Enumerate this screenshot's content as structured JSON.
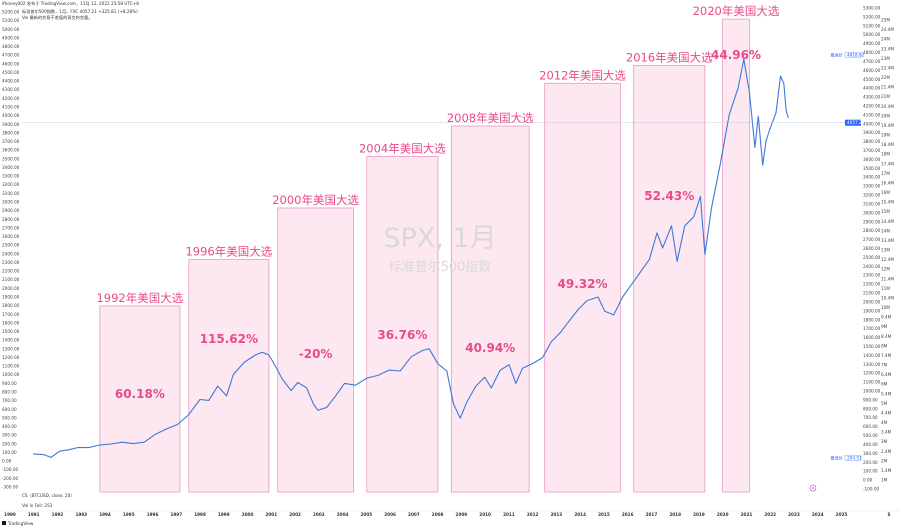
{
  "header": {
    "line1": "ifhoney002 发布于 TradingView.com，11月 12, 2022 23:58 UTC+8",
    "line2": "标准普尔500指数，1月，FXC  4057.21 +325.81 (+8.28%)",
    "line3": "Vol 最新的交易干差值的再交的交量。",
    "indicator1": "CS（BTCUSD, close, 20）",
    "indicator2": "Vol in Fall: 253",
    "footer": "TradingView"
  },
  "watermark": {
    "title": "SPX, 1月",
    "subtitle": "标准普尔500指数"
  },
  "price_badges": {
    "top_label": "最高价",
    "top_value": "4818.62",
    "current_value": "4057.21",
    "low_label": "最低价",
    "low_value": "294.51"
  },
  "colors": {
    "line": "#3d78d8",
    "box_fill": "#fde8f1",
    "box_stroke": "#e98ab7",
    "label": "#e94a8b",
    "badge": "#2962ff"
  },
  "chart_data": {
    "type": "line",
    "x_axis": [
      "1990",
      "1991",
      "1992",
      "1993",
      "1994",
      "1995",
      "1996",
      "1997",
      "1998",
      "1999",
      "2000",
      "2001",
      "2002",
      "2003",
      "2004",
      "2005",
      "2006",
      "2007",
      "2008",
      "2009",
      "2010",
      "2011",
      "2012",
      "2013",
      "2014",
      "2015",
      "2016",
      "2017",
      "2018",
      "2019",
      "2020",
      "2021",
      "2022",
      "2023",
      "2024",
      "2025",
      "",
      "S"
    ],
    "left_axis_ticks": [
      "5200.00",
      "5100.00",
      "5000.00",
      "4900.00",
      "4800.00",
      "4700.00",
      "4600.00",
      "4500.00",
      "4400.00",
      "4300.00",
      "4200.00",
      "4100.00",
      "4000.00",
      "3900.00",
      "3800.00",
      "3700.00",
      "3600.00",
      "3500.00",
      "3400.00",
      "3300.00",
      "3200.00",
      "3100.00",
      "3000.00",
      "2900.00",
      "2800.00",
      "2700.00",
      "2600.00",
      "2500.00",
      "2400.00",
      "2300.00",
      "2200.00",
      "2100.00",
      "2000.00",
      "1900.00",
      "1800.00",
      "1700.00",
      "1600.00",
      "1500.00",
      "1400.00",
      "1300.00",
      "1200.00",
      "1100.00",
      "1000.00",
      "900.00",
      "800.00",
      "700.00",
      "600.00",
      "500.00",
      "400.00",
      "300.00",
      "200.00",
      "100.00",
      "0.00",
      "-100.00",
      "-200.00",
      "-300.00"
    ],
    "right_axis_ticks": [
      "5300.00",
      "5200.00",
      "5100.00",
      "5000.00",
      "4900.00",
      "4800.00",
      "4700.00",
      "4600.00",
      "4500.00",
      "4400.00",
      "4300.00",
      "4200.00",
      "4100.00",
      "4000.00",
      "3900.00",
      "3800.00",
      "3700.00",
      "3600.00",
      "3500.00",
      "3400.00",
      "3300.00",
      "3200.00",
      "3100.00",
      "3000.00",
      "2900.00",
      "2800.00",
      "2700.00",
      "2600.00",
      "2500.00",
      "2400.00",
      "2300.00",
      "2200.00",
      "2100.00",
      "2000.00",
      "1900.00",
      "1800.00",
      "1700.00",
      "1600.00",
      "1500.00",
      "1400.00",
      "1300.00",
      "1200.00",
      "1100.00",
      "1000.00",
      "900.00",
      "800.00",
      "700.00",
      "600.00",
      "500.00",
      "400.00",
      "300.00",
      "200.00",
      "100.00",
      "0.00",
      "-100.00"
    ],
    "vol_axis_ticks": [
      "25M",
      "24.4M",
      "24M",
      "23.4M",
      "23M",
      "22.4M",
      "22M",
      "21.4M",
      "21M",
      "20.4M",
      "20M",
      "19.4M",
      "19M",
      "18.4M",
      "18M",
      "17.4M",
      "17M",
      "16.4M",
      "16M",
      "15.4M",
      "15M",
      "14.4M",
      "14M",
      "13.4M",
      "13M",
      "12.4M",
      "12M",
      "11.4M",
      "11M",
      "10.4M",
      "10M",
      "9.4M",
      "9M",
      "8.4M",
      "8M",
      "7.4M",
      "7M",
      "6.4M",
      "6M",
      "5.4M",
      "5M",
      "4.4M",
      "4M",
      "3.4M",
      "3M",
      "2.4M",
      "2M",
      "1.4M",
      "1M"
    ],
    "ylim": [
      -100,
      5300
    ],
    "series": [
      {
        "values": [
          [
            1990.0,
            340
          ],
          [
            1990.5,
            330
          ],
          [
            1990.8,
            300
          ],
          [
            1991.2,
            370
          ],
          [
            1991.6,
            385
          ],
          [
            1992.0,
            410
          ],
          [
            1992.5,
            410
          ],
          [
            1993.0,
            440
          ],
          [
            1993.5,
            450
          ],
          [
            1994.0,
            470
          ],
          [
            1994.5,
            455
          ],
          [
            1995.0,
            470
          ],
          [
            1995.5,
            560
          ],
          [
            1996.0,
            620
          ],
          [
            1996.5,
            670
          ],
          [
            1997.0,
            780
          ],
          [
            1997.5,
            950
          ],
          [
            1997.9,
            940
          ],
          [
            1998.3,
            1100
          ],
          [
            1998.7,
            990
          ],
          [
            1999.0,
            1230
          ],
          [
            1999.5,
            1370
          ],
          [
            2000.0,
            1450
          ],
          [
            2000.3,
            1480
          ],
          [
            2000.6,
            1450
          ],
          [
            2000.9,
            1320
          ],
          [
            2001.2,
            1180
          ],
          [
            2001.6,
            1050
          ],
          [
            2001.9,
            1140
          ],
          [
            2002.3,
            1080
          ],
          [
            2002.6,
            900
          ],
          [
            2002.8,
            830
          ],
          [
            2003.2,
            860
          ],
          [
            2003.6,
            990
          ],
          [
            2004.0,
            1130
          ],
          [
            2004.5,
            1110
          ],
          [
            2005.0,
            1190
          ],
          [
            2005.5,
            1220
          ],
          [
            2006.0,
            1280
          ],
          [
            2006.5,
            1270
          ],
          [
            2007.0,
            1430
          ],
          [
            2007.5,
            1500
          ],
          [
            2007.8,
            1520
          ],
          [
            2008.2,
            1350
          ],
          [
            2008.6,
            1270
          ],
          [
            2008.9,
            900
          ],
          [
            2009.2,
            740
          ],
          [
            2009.5,
            920
          ],
          [
            2009.9,
            1100
          ],
          [
            2010.3,
            1200
          ],
          [
            2010.6,
            1080
          ],
          [
            2011.0,
            1280
          ],
          [
            2011.4,
            1340
          ],
          [
            2011.7,
            1130
          ],
          [
            2012.0,
            1300
          ],
          [
            2012.5,
            1360
          ],
          [
            2012.9,
            1420
          ],
          [
            2013.3,
            1600
          ],
          [
            2013.7,
            1700
          ],
          [
            2014.0,
            1800
          ],
          [
            2014.5,
            1960
          ],
          [
            2014.9,
            2060
          ],
          [
            2015.4,
            2100
          ],
          [
            2015.7,
            1940
          ],
          [
            2016.1,
            1900
          ],
          [
            2016.5,
            2100
          ],
          [
            2016.9,
            2240
          ],
          [
            2017.3,
            2380
          ],
          [
            2017.7,
            2520
          ],
          [
            2018.05,
            2820
          ],
          [
            2018.3,
            2650
          ],
          [
            2018.7,
            2900
          ],
          [
            2018.95,
            2500
          ],
          [
            2019.3,
            2900
          ],
          [
            2019.7,
            3000
          ],
          [
            2020.0,
            3230
          ],
          [
            2020.2,
            2580
          ],
          [
            2020.5,
            3100
          ],
          [
            2020.9,
            3600
          ],
          [
            2021.3,
            4150
          ],
          [
            2021.7,
            4450
          ],
          [
            2021.95,
            4770
          ],
          [
            2022.2,
            4400
          ],
          [
            2022.45,
            3780
          ],
          [
            2022.6,
            4130
          ],
          [
            2022.8,
            3580
          ],
          [
            2022.95,
            3850
          ],
          [
            2023.1,
            3970
          ],
          [
            2023.4,
            4170
          ],
          [
            2023.6,
            4580
          ],
          [
            2023.75,
            4500
          ],
          [
            2023.85,
            4200
          ],
          [
            2023.95,
            4110
          ]
        ]
      }
    ],
    "x_range": [
      1989.5,
      2026.5
    ]
  },
  "elections": [
    {
      "label": "1992年美国大选",
      "pct": "60.18%",
      "x0": 1993.0,
      "x1": 1996.6,
      "top": 2000
    },
    {
      "label": "1996年美国大选",
      "pct": "115.62%",
      "x0": 1997.0,
      "x1": 2000.6,
      "top": 2520
    },
    {
      "label": "2000年美国大选",
      "pct": "-20%",
      "x0": 2001.0,
      "x1": 2004.4,
      "top": 3100
    },
    {
      "label": "2004年美国大选",
      "pct": "36.76%",
      "x0": 2005.0,
      "x1": 2008.2,
      "top": 3680
    },
    {
      "label": "2008年美国大选",
      "pct": "40.94%",
      "x0": 2008.8,
      "x1": 2012.3,
      "top": 4020
    },
    {
      "label": "2012年美国大选",
      "pct": "49.32%",
      "x0": 2013.0,
      "x1": 2016.4,
      "top": 4500
    },
    {
      "label": "2016年美国大选",
      "pct": "52.43%",
      "x0": 2017.0,
      "x1": 2020.2,
      "top": 4700
    },
    {
      "label": "2020年美国大选",
      "pct": "44.96%",
      "x0": 2021.0,
      "x1": 2022.2,
      "top": 5220
    }
  ]
}
